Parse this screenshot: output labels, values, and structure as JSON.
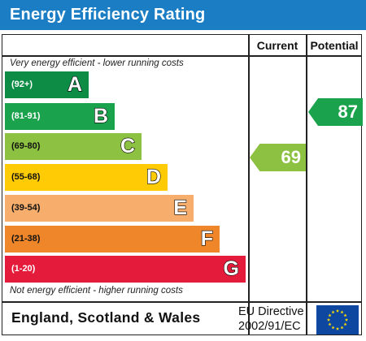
{
  "title": "Energy Efficiency Rating",
  "columns": {
    "current": "Current",
    "potential": "Potential"
  },
  "top_note": "Very energy efficient - lower running costs",
  "bottom_note": "Not energy efficient - higher running costs",
  "bands": [
    {
      "range": "(92+)",
      "letter": "A",
      "color": "#0c8c44"
    },
    {
      "range": "(81-91)",
      "letter": "B",
      "color": "#1aa24c"
    },
    {
      "range": "(69-80)",
      "letter": "C",
      "color": "#8cc141"
    },
    {
      "range": "(55-68)",
      "letter": "D",
      "color": "#ffcb05"
    },
    {
      "range": "(39-54)",
      "letter": "E",
      "color": "#f7ad6b"
    },
    {
      "range": "(21-38)",
      "letter": "F",
      "color": "#f0862a"
    },
    {
      "range": "(1-20)",
      "letter": "G",
      "color": "#e41b3b"
    }
  ],
  "current": {
    "value": "69",
    "color": "#8cc141"
  },
  "potential": {
    "value": "87",
    "color": "#1aa24c"
  },
  "footer": {
    "region": "England, Scotland & Wales",
    "directive_line1": "EU Directive",
    "directive_line2": "2002/91/EC",
    "flag_icon": "eu-flag-icon"
  }
}
